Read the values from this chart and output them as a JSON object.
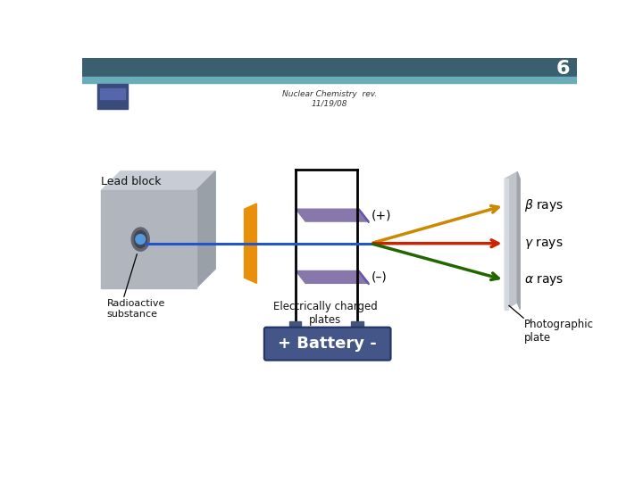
{
  "title_number": "6",
  "subtitle": "Nuclear Chemistry  rev.\n11/19/08",
  "lead_block_label": "Lead block",
  "radioactive_label": "Radioactive\nsubstance",
  "charged_plates_label": "Electrically charged\nplates",
  "photo_plate_label": "Photographic\nplate",
  "plus_label": "(+)",
  "minus_label": "(–)",
  "battery_label": "+ Battery -",
  "beta_color": "#cc8800",
  "gamma_color": "#cc2200",
  "alpha_color": "#226600",
  "beam_color": "#2255cc",
  "plate_color": "#8877aa",
  "orange_color": "#e8900a",
  "battery_color": "#445588",
  "header_bg": "#3a6070",
  "header_strip": "#6aacb8",
  "icon_bg": "#3a4a7a",
  "icon_fg": "#5566aa",
  "conn_color": "#445577",
  "lead_top_color": "#c8cdd5",
  "lead_right_color": "#9aa0a8",
  "lead_front_color": "#b0b5be",
  "hole_outer": "#606570",
  "hole_inner": "#404550",
  "ball_color": "#5599dd",
  "plate_edge_color": "#6655aa",
  "photo_main_color": "#c0c5cc",
  "photo_side_color": "#a0a5ac",
  "photo_front_color": "#d5dae0"
}
